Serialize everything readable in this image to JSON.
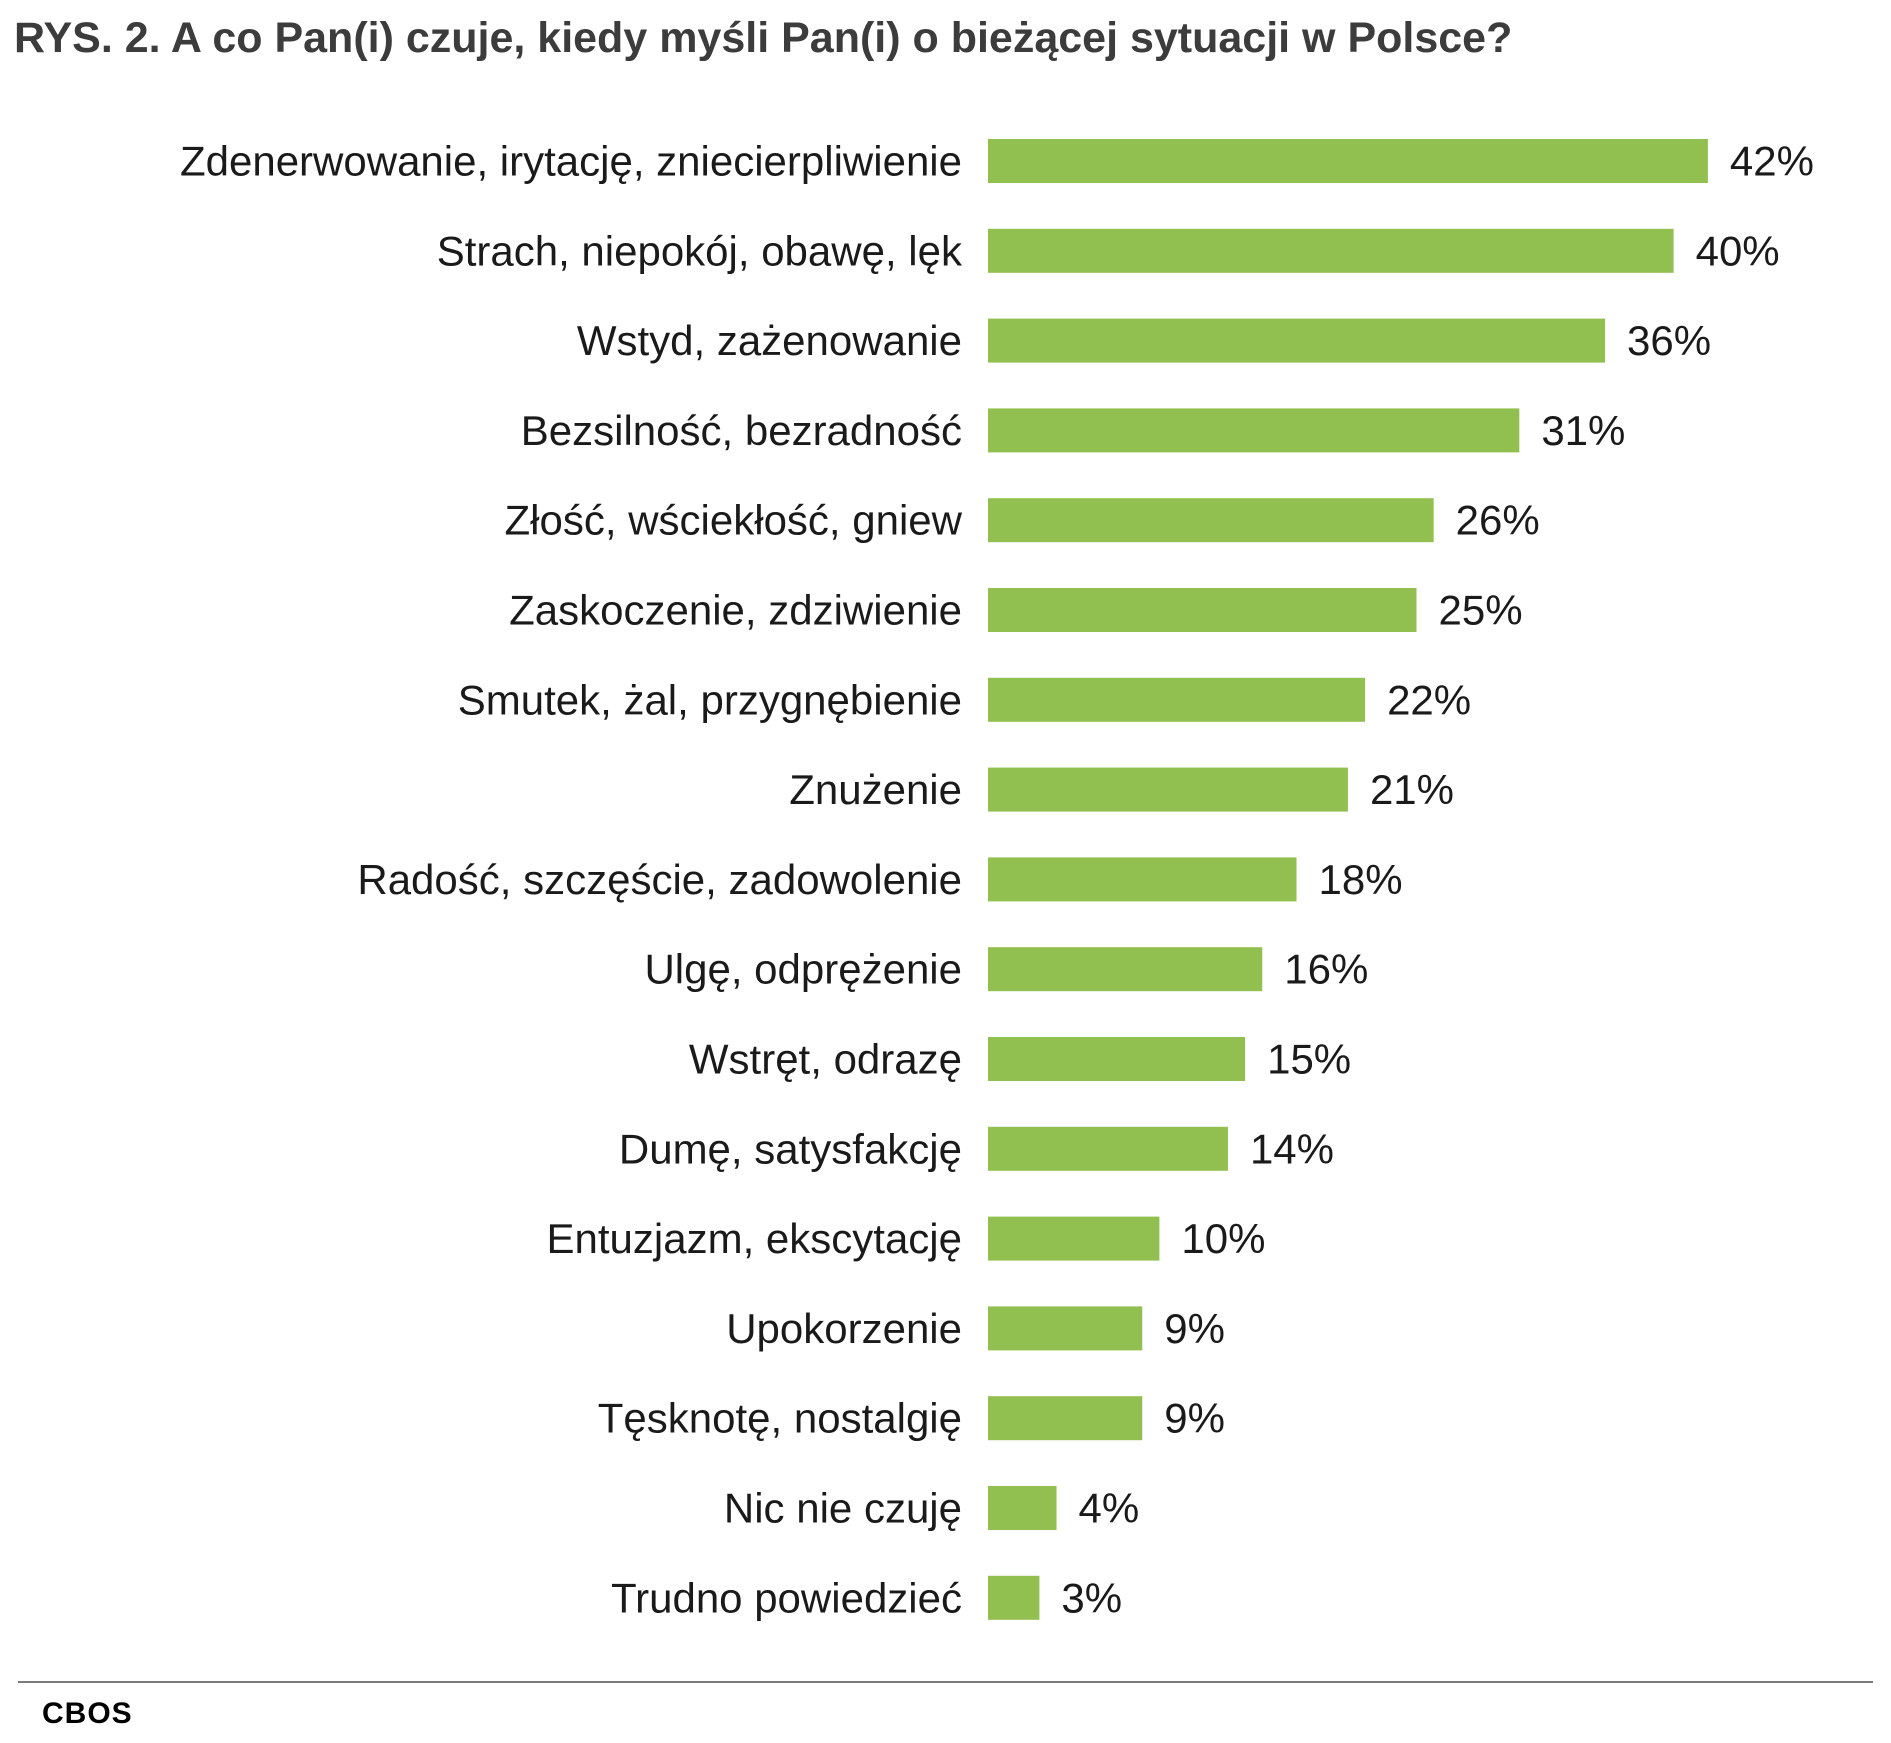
{
  "title": "RYS. 2. A co Pan(i) czuje, kiedy myśli Pan(i) o bieżącej sytuacji w Polsce?",
  "source": "CBOS",
  "colors": {
    "bar": "#92c050"
  },
  "chart_data": {
    "type": "bar",
    "orientation": "horizontal",
    "title": "RYS. 2. A co Pan(i) czuje, kiedy myśli Pan(i) o bieżącej sytuacji w Polsce?",
    "categories": [
      "Zdenerwowanie, irytację, zniecierpliwienie",
      "Strach, niepokój, obawę, lęk",
      "Wstyd, zażenowanie",
      "Bezsilność, bezradność",
      "Złość, wściekłość, gniew",
      "Zaskoczenie, zdziwienie",
      "Smutek, żal, przygnębienie",
      "Znużenie",
      "Radość, szczęście, zadowolenie",
      "Ulgę, odprężenie",
      "Wstręt, odrazę",
      "Dumę, satysfakcję",
      "Entuzjazm, ekscytację",
      "Upokorzenie",
      "Tęsknotę, nostalgię",
      "Nic nie czuję",
      "Trudno powiedzieć"
    ],
    "values": [
      42,
      40,
      36,
      31,
      26,
      25,
      22,
      21,
      18,
      16,
      15,
      14,
      10,
      9,
      9,
      4,
      3
    ],
    "value_labels": [
      "42%",
      "40%",
      "36%",
      "31%",
      "26%",
      "25%",
      "22%",
      "21%",
      "18%",
      "16%",
      "15%",
      "14%",
      "10%",
      "9%",
      "9%",
      "4%",
      "3%"
    ],
    "unit": "%",
    "xlabel": "",
    "ylabel": "",
    "grid": false,
    "legend": "none"
  }
}
